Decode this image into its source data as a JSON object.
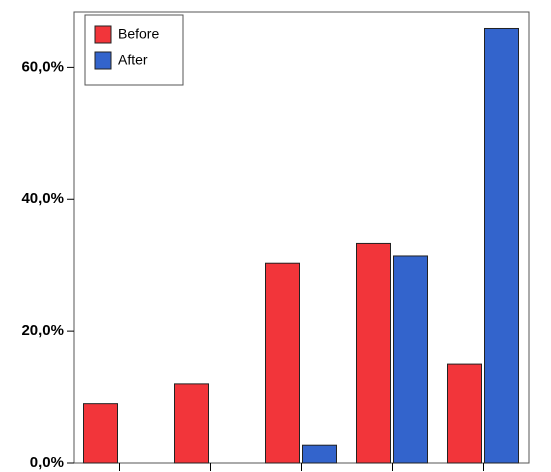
{
  "chart_data": {
    "type": "bar",
    "categories": [
      null,
      null,
      null,
      null,
      null
    ],
    "series": [
      {
        "name": "Before",
        "color": "#f2353a",
        "values": [
          9.0,
          12.0,
          30.3,
          33.3,
          15.0
        ]
      },
      {
        "name": "After",
        "color": "#3364cc",
        "values": [
          null,
          null,
          2.7,
          31.4,
          65.9
        ]
      }
    ],
    "ylim": [
      0,
      68.4
    ],
    "yticks": [
      {
        "value": 0,
        "label": "0,0%"
      },
      {
        "value": 20,
        "label": "20,0%"
      },
      {
        "value": 40,
        "label": "40,0%"
      },
      {
        "value": 60,
        "label": "60,0%"
      }
    ],
    "grid": false,
    "legend": "upper left"
  }
}
